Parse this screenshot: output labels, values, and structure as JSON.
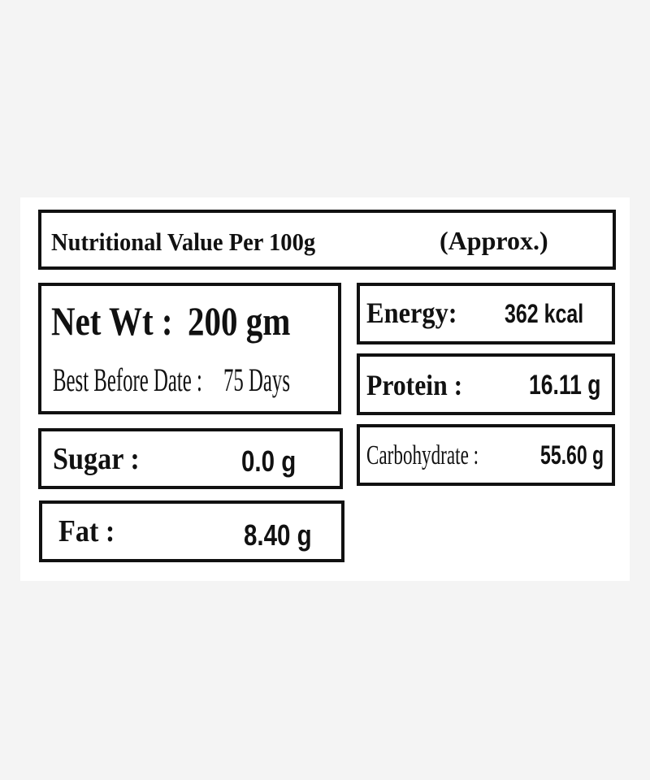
{
  "label": {
    "title": "Nutritional Value Per 100g",
    "title_note": "(Approx.)",
    "net_weight": {
      "label": "Net Wt :",
      "value": "200 gm"
    },
    "best_before": {
      "label": "Best Before Date :",
      "value": "75 Days"
    },
    "nutrients": [
      {
        "name": "Energy:",
        "value": "362 kcal"
      },
      {
        "name": "Protein :",
        "value": "16.11 g"
      },
      {
        "name": "Carbohydrate :",
        "value": "55.60 g"
      },
      {
        "name": "Sugar :",
        "value": "0.0 g"
      },
      {
        "name": "Fat :",
        "value": "8.40 g"
      }
    ]
  }
}
